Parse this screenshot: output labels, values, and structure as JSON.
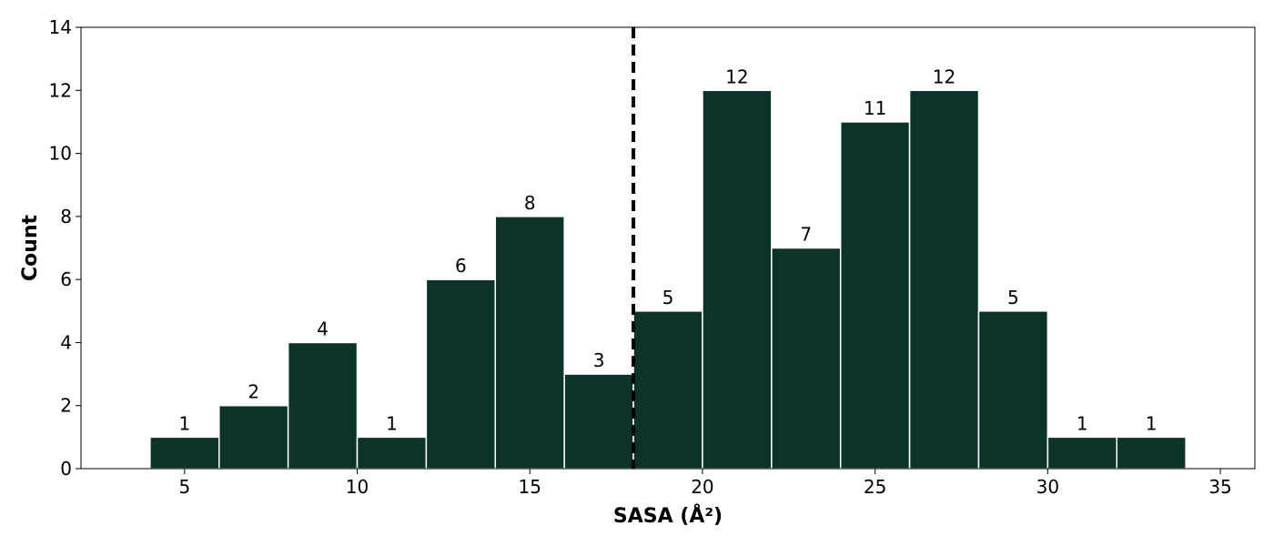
{
  "chart_data": {
    "type": "bar",
    "title": "",
    "xlabel": "SASA (Å²)",
    "ylabel": "Count",
    "xlim": [
      2,
      36
    ],
    "ylim": [
      0,
      14
    ],
    "bin_edges": [
      4,
      6,
      8,
      10,
      12,
      14,
      16,
      18,
      20,
      22,
      24,
      26,
      28,
      30,
      32,
      34
    ],
    "values": [
      1,
      2,
      4,
      1,
      6,
      8,
      3,
      5,
      12,
      7,
      11,
      12,
      5,
      1,
      1
    ],
    "value_labels": [
      "1",
      "2",
      "4",
      "1",
      "6",
      "8",
      "3",
      "5",
      "12",
      "7",
      "11",
      "12",
      "5",
      "1",
      "1"
    ],
    "x_ticks": [
      5,
      10,
      15,
      20,
      25,
      30,
      35
    ],
    "x_tick_labels": [
      "5",
      "10",
      "15",
      "20",
      "25",
      "30",
      "35"
    ],
    "y_ticks": [
      0,
      2,
      4,
      6,
      8,
      10,
      12,
      14
    ],
    "y_tick_labels": [
      "0",
      "2",
      "4",
      "6",
      "8",
      "10",
      "12",
      "14"
    ],
    "reference_line": {
      "x": 18,
      "style": "dashed",
      "color": "#000000"
    },
    "bar_color": "#0b322b",
    "bar_edge_color": "#ffffff",
    "grid": false,
    "legend": "none"
  }
}
